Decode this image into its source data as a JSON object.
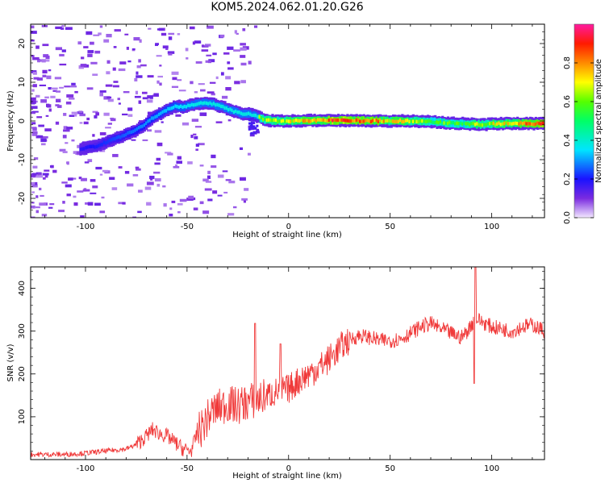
{
  "title": "KOM5.2024.062.01.20.G26",
  "colors": {
    "snr_line": "#f03a3a",
    "spectrogram_base": "#a05cf0"
  },
  "chart_data": [
    {
      "type": "heatmap",
      "xlabel": "Height of straight line (km)",
      "ylabel": "Frequency (Hz)",
      "xlim": [
        -127,
        126
      ],
      "ylim": [
        -25,
        25
      ],
      "x_ticks": [
        -100,
        -50,
        0,
        50,
        100
      ],
      "y_ticks": [
        -20,
        -10,
        0,
        10,
        20
      ],
      "colorbar": {
        "label": "Normalized spectral amplitude",
        "range": [
          0,
          1
        ],
        "ticks": [
          "0.0",
          "0.2",
          "0.4",
          "0.6",
          "0.8"
        ],
        "colormap": "rainbow"
      },
      "trace": [
        [
          -102,
          -7.2
        ],
        [
          -95,
          -6.5
        ],
        [
          -88,
          -5
        ],
        [
          -82,
          -3.8
        ],
        [
          -76,
          -2.5
        ],
        [
          -72,
          -1.2
        ],
        [
          -68,
          0.5
        ],
        [
          -64,
          1.8
        ],
        [
          -60,
          3
        ],
        [
          -56,
          3.8
        ],
        [
          -52,
          3.6
        ],
        [
          -48,
          4.2
        ],
        [
          -43,
          4.6
        ],
        [
          -38,
          4.4
        ],
        [
          -33,
          3.6
        ],
        [
          -28,
          2.6
        ],
        [
          -24,
          1.9
        ],
        [
          -20,
          1.8
        ],
        [
          -16,
          1.2
        ],
        [
          -12,
          0.2
        ],
        [
          -5,
          0
        ],
        [
          0,
          0
        ],
        [
          10,
          0.1
        ],
        [
          20,
          0.2
        ],
        [
          30,
          0.1
        ],
        [
          40,
          0
        ],
        [
          50,
          0
        ],
        [
          60,
          0
        ],
        [
          70,
          -0.2
        ],
        [
          80,
          -0.6
        ],
        [
          90,
          -0.8
        ],
        [
          95,
          -0.9
        ],
        [
          100,
          -0.8
        ],
        [
          110,
          -0.6
        ],
        [
          120,
          -0.7
        ],
        [
          126,
          -0.6
        ]
      ]
    },
    {
      "type": "line",
      "xlabel": "Height of straight line (km)",
      "ylabel": "SNR (v/v)",
      "xlim": [
        -127,
        126
      ],
      "ylim": [
        0,
        450
      ],
      "x_ticks": [
        -100,
        -50,
        0,
        50,
        100
      ],
      "y_ticks": [
        100,
        200,
        300,
        400
      ],
      "grid": false,
      "series": [
        {
          "x": [
            -127,
            -110,
            -100,
            -90,
            -80,
            -75,
            -70,
            -67,
            -63,
            -60,
            -56,
            -52,
            -48,
            -45,
            -42,
            -38,
            -35,
            -30,
            -25,
            -20,
            -15,
            -10,
            -5,
            0,
            5,
            10,
            15,
            20,
            25,
            30,
            35,
            40,
            45,
            50,
            55,
            60,
            65,
            70,
            75,
            80,
            85,
            88,
            92,
            96,
            100,
            105,
            110,
            115,
            120,
            126
          ],
          "y": [
            12,
            12,
            15,
            20,
            25,
            35,
            55,
            70,
            60,
            55,
            40,
            25,
            20,
            60,
            80,
            110,
            120,
            130,
            125,
            135,
            140,
            150,
            160,
            165,
            185,
            200,
            215,
            235,
            260,
            280,
            290,
            285,
            278,
            278,
            282,
            295,
            310,
            318,
            305,
            295,
            285,
            300,
            330,
            320,
            310,
            305,
            300,
            310,
            315,
            300
          ]
        }
      ]
    }
  ]
}
